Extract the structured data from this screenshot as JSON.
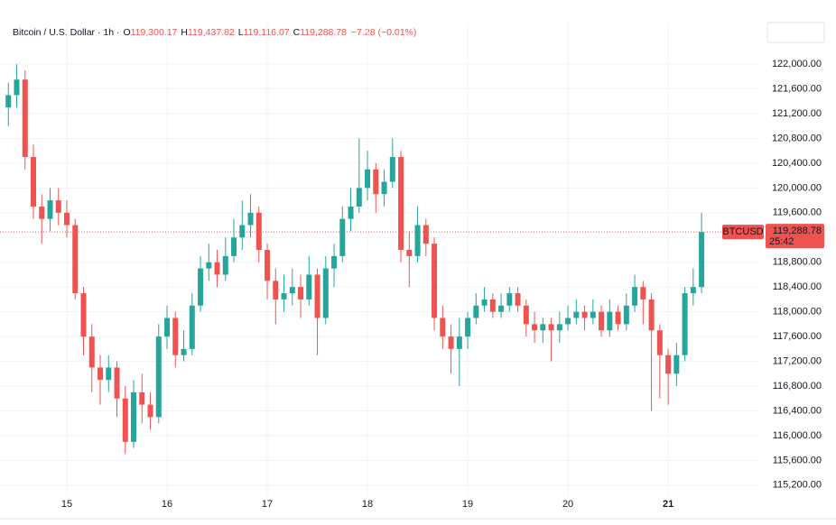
{
  "chart_data": {
    "type": "candlestick",
    "header": {
      "symbol": "Bitcoin / U.S. Dollar · 1h ·",
      "ohlc": [
        {
          "key": "O",
          "value": "119,300.17"
        },
        {
          "key": "H",
          "value": "119,437.82"
        },
        {
          "key": "L",
          "value": "119,116.07"
        },
        {
          "key": "C",
          "value": "119,288.78"
        }
      ],
      "change": "−7.28 (−0.01%)"
    },
    "up_color": "#26a69a",
    "down_color": "#ef5350",
    "grid": true,
    "x": [
      -14,
      -12,
      -10,
      -8,
      -6,
      -4,
      -2,
      0,
      2,
      4,
      6,
      8,
      10,
      12,
      14,
      16,
      18,
      20,
      22,
      24,
      26,
      28,
      30,
      32,
      34,
      36,
      38,
      40,
      42,
      44,
      46,
      48,
      50,
      52,
      54,
      56,
      58,
      60,
      62,
      64,
      66,
      68,
      70,
      72,
      74,
      76,
      78,
      80,
      82,
      84,
      86,
      88,
      90,
      92,
      94,
      96,
      98,
      100,
      102,
      104,
      106,
      108,
      110,
      112,
      114,
      116,
      118,
      120,
      122,
      124,
      126,
      128,
      130,
      132,
      134,
      136,
      138,
      140,
      142,
      144,
      146,
      148,
      150,
      152
    ],
    "open": [
      121300,
      121500,
      121750,
      120500,
      119700,
      119500,
      119800,
      119600,
      119400,
      118300,
      117600,
      117100,
      116900,
      117100,
      116600,
      115900,
      116700,
      116500,
      116300,
      117600,
      117900,
      117300,
      117400,
      118100,
      118700,
      118800,
      118600,
      118900,
      119200,
      119400,
      119600,
      119000,
      118500,
      118200,
      118300,
      118400,
      118200,
      118600,
      117900,
      118700,
      118900,
      119500,
      119700,
      120000,
      120300,
      119900,
      120100,
      120500,
      119000,
      118900,
      119400,
      119100,
      117900,
      117600,
      117400,
      117600,
      117900,
      118100,
      118200,
      118000,
      118100,
      118300,
      118100,
      117800,
      117700,
      117800,
      117700,
      117800,
      117900,
      118000,
      117900,
      118000,
      117700,
      118000,
      117800,
      118100,
      118400,
      118200,
      117700,
      117300,
      117000,
      117300,
      118300,
      118400
    ],
    "high": [
      121700,
      122000,
      121900,
      120700,
      119900,
      120000,
      120000,
      119800,
      119500,
      118400,
      117800,
      117300,
      117300,
      117200,
      116800,
      116900,
      117000,
      116700,
      117800,
      118100,
      118000,
      117700,
      118300,
      118900,
      119100,
      119000,
      119200,
      119500,
      119800,
      119900,
      119700,
      119100,
      118700,
      118600,
      118700,
      118600,
      118900,
      118700,
      118900,
      119100,
      119700,
      120000,
      120800,
      120600,
      120400,
      120300,
      120800,
      120600,
      119300,
      119700,
      119500,
      119200,
      118100,
      117800,
      117900,
      118000,
      118300,
      118400,
      118300,
      118300,
      118400,
      118400,
      118200,
      118000,
      117900,
      117900,
      118000,
      118100,
      118200,
      118100,
      118200,
      118100,
      118200,
      118100,
      118300,
      118600,
      118500,
      118300,
      117800,
      117400,
      117500,
      118400,
      118700,
      119600
    ],
    "low": [
      121000,
      121300,
      120300,
      119500,
      119100,
      119300,
      119400,
      119200,
      118200,
      117300,
      116700,
      116500,
      116700,
      116300,
      115700,
      115800,
      116200,
      116100,
      116200,
      117400,
      117100,
      117200,
      117300,
      118000,
      118500,
      118400,
      118500,
      118800,
      119000,
      119200,
      118800,
      118200,
      117800,
      118000,
      118100,
      117900,
      118100,
      117300,
      117800,
      118400,
      118800,
      119300,
      119600,
      119800,
      119600,
      119700,
      120000,
      118800,
      118400,
      118800,
      118900,
      117700,
      117400,
      117000,
      116800,
      117400,
      117800,
      118000,
      117900,
      117900,
      118000,
      118000,
      117600,
      117500,
      117500,
      117200,
      117500,
      117700,
      117800,
      117700,
      117800,
      117600,
      117600,
      117700,
      117700,
      118000,
      117800,
      116400,
      116600,
      116500,
      116800,
      117200,
      118100,
      118300
    ],
    "close": [
      121500,
      121750,
      120500,
      119700,
      119500,
      119800,
      119600,
      119400,
      118300,
      117600,
      117100,
      116900,
      117100,
      116600,
      115900,
      116700,
      116500,
      116300,
      117600,
      117900,
      117300,
      117400,
      118100,
      118700,
      118800,
      118600,
      118900,
      119200,
      119400,
      119600,
      119000,
      118500,
      118200,
      118300,
      118400,
      118200,
      118600,
      117900,
      118700,
      118900,
      119500,
      119700,
      120000,
      120300,
      119900,
      120100,
      120500,
      119000,
      118900,
      119400,
      119100,
      117900,
      117600,
      117400,
      117600,
      117900,
      118100,
      118200,
      118000,
      118100,
      118300,
      118100,
      117800,
      117700,
      117800,
      117700,
      117800,
      117900,
      118000,
      117900,
      118000,
      117700,
      118000,
      117800,
      118100,
      118400,
      118200,
      117700,
      117300,
      117000,
      117300,
      118300,
      118400,
      119289
    ],
    "xlim": [
      -16,
      165.6
    ],
    "xticks": [
      {
        "value": 0,
        "label": "15"
      },
      {
        "value": 24,
        "label": "16"
      },
      {
        "value": 48,
        "label": "17"
      },
      {
        "value": 72,
        "label": "18"
      },
      {
        "value": 96,
        "label": "19"
      },
      {
        "value": 120,
        "label": "20"
      },
      {
        "value": 144,
        "label": "21"
      }
    ],
    "ylim": [
      114950,
      122380
    ],
    "yticks": [
      {
        "value": 115200,
        "label": "115,200.00"
      },
      {
        "value": 115600,
        "label": "115,600.00"
      },
      {
        "value": 116000,
        "label": "116,000.00"
      },
      {
        "value": 116400,
        "label": "116,400.00"
      },
      {
        "value": 116800,
        "label": "116,800.00"
      },
      {
        "value": 117200,
        "label": "117,200.00"
      },
      {
        "value": 117600,
        "label": "117,600.00"
      },
      {
        "value": 118000,
        "label": "118,000.00"
      },
      {
        "value": 118400,
        "label": "118,400.00"
      },
      {
        "value": 118800,
        "label": "118,800.00"
      },
      {
        "value": 119200,
        "label": "119,200.00"
      },
      {
        "value": 119600,
        "label": "119,600.00"
      },
      {
        "value": 120000,
        "label": "120,000.00"
      },
      {
        "value": 120400,
        "label": "120,400.00"
      },
      {
        "value": 120800,
        "label": "120,800.00"
      },
      {
        "value": 121200,
        "label": "121,200.00"
      },
      {
        "value": 121600,
        "label": "121,600.00"
      },
      {
        "value": 122000,
        "label": "122,000.00"
      }
    ],
    "last_price": {
      "value": 119288.78,
      "label": "119,288.78"
    },
    "price_symbol": "BTCUSD",
    "countdown": "25:42"
  }
}
